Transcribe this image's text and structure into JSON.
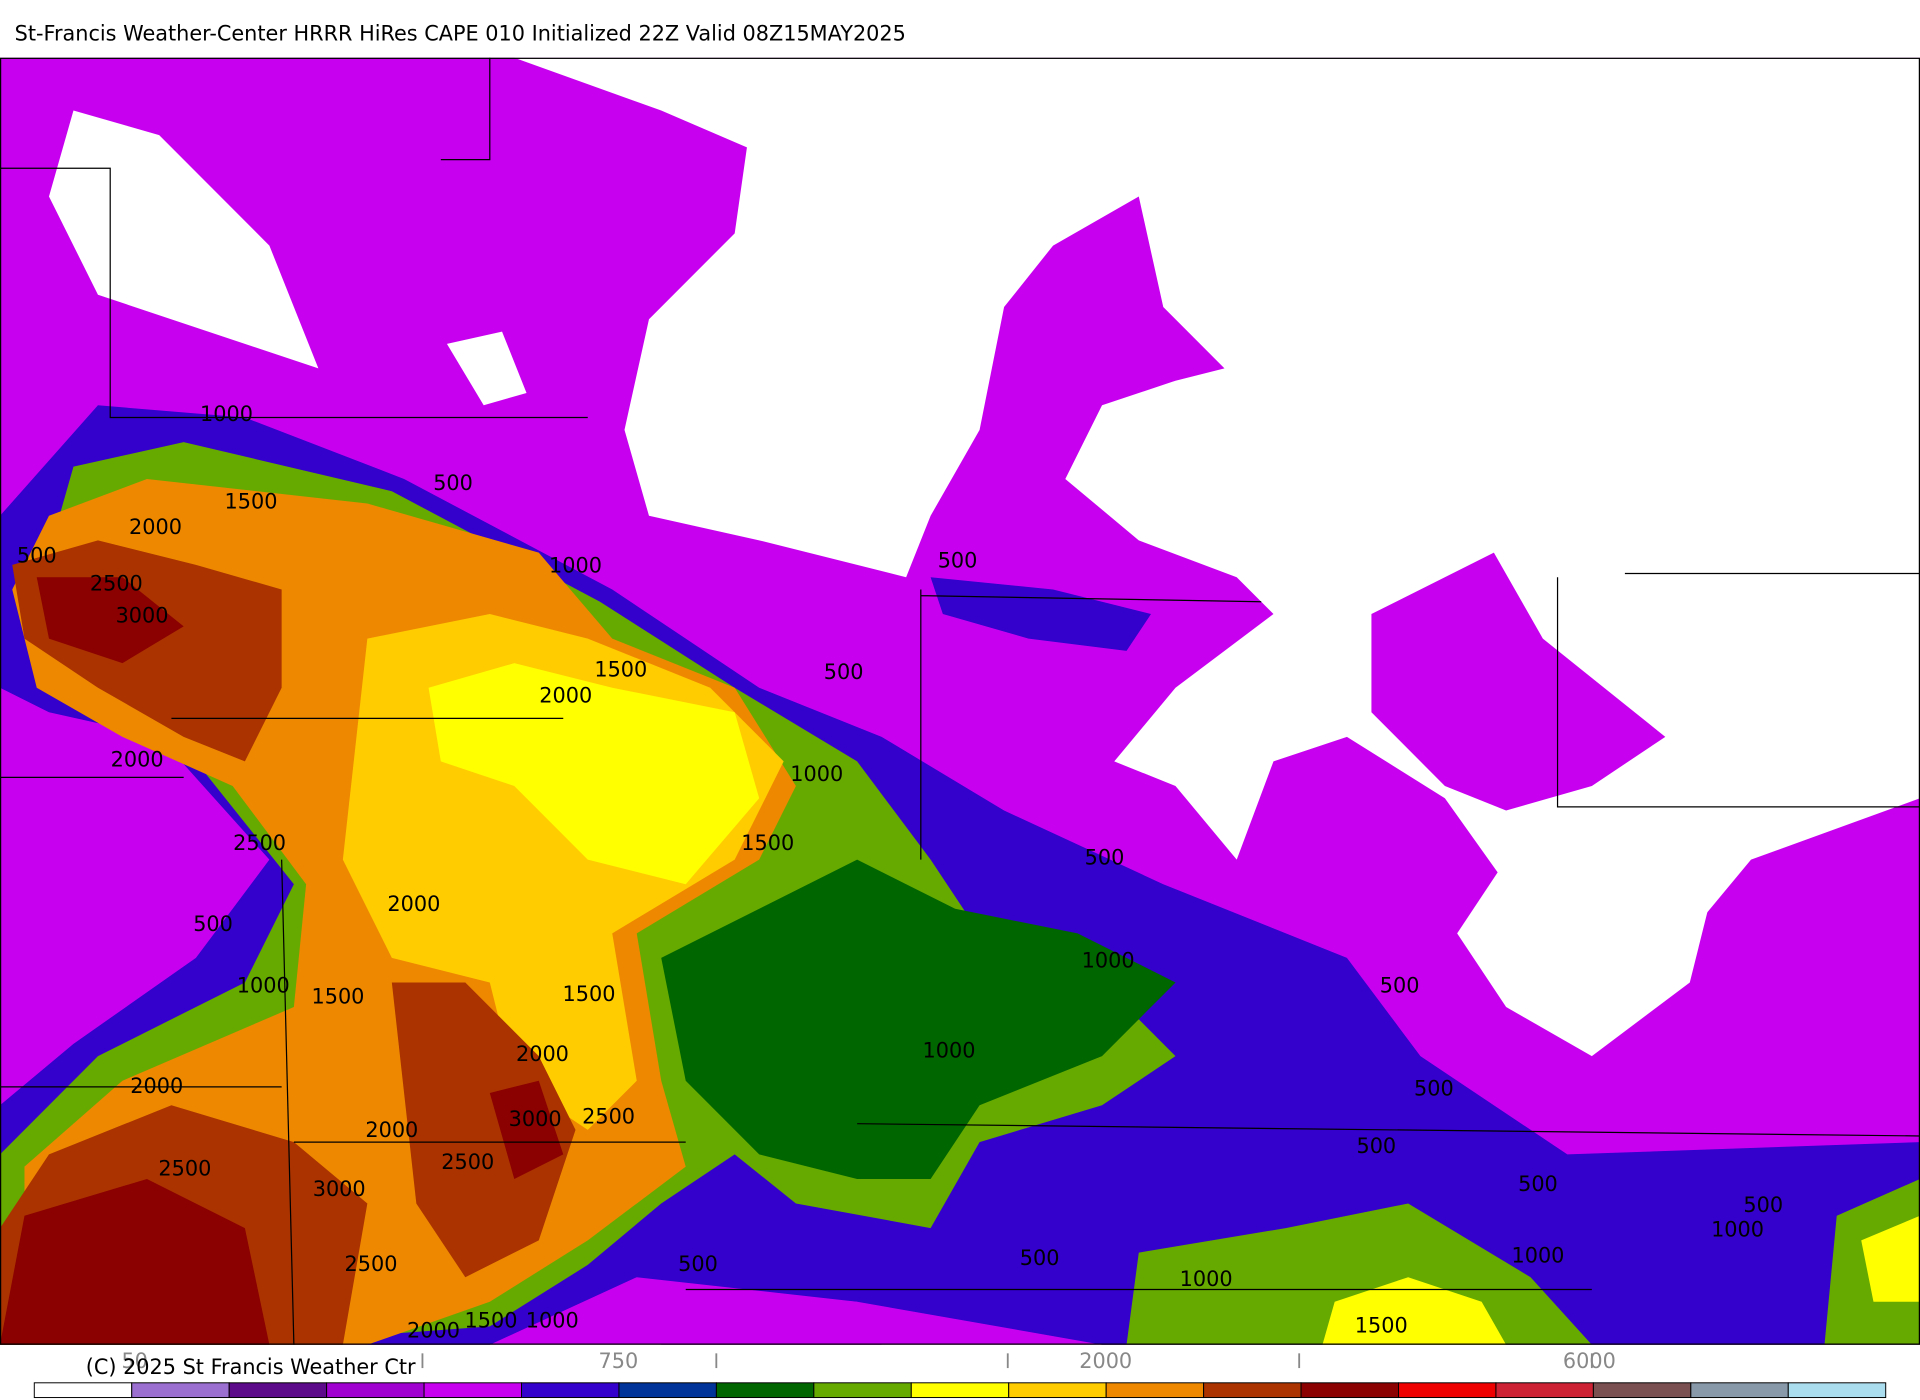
{
  "header": {
    "title": "St-Francis Weather-Center HRRR HiRes CAPE  010 Initialized  22Z Valid 08Z15MAY2025"
  },
  "map": {
    "contour_labels": [
      1000,
      500,
      1500,
      2000,
      500,
      2500,
      3000,
      1000,
      500,
      1500,
      500,
      2000,
      2000,
      1000,
      1500,
      2500,
      500,
      2000,
      500,
      1000,
      1000,
      1500,
      1500,
      500,
      1000,
      2000,
      2000,
      500,
      3000,
      2500,
      2000,
      500,
      2500,
      2500,
      500,
      3000,
      500,
      1000,
      1000,
      500,
      2500,
      500,
      1000,
      1500,
      2000,
      1500,
      1000
    ]
  },
  "colorbar": {
    "colors": [
      "#ffffff",
      "#9a6fd0",
      "#5c0a8a",
      "#a000d0",
      "#c800f0",
      "#3300cc",
      "#003399",
      "#006600",
      "#66aa00",
      "#ffff00",
      "#ffcc00",
      "#ee8800",
      "#aa3300",
      "#8b0000",
      "#ee0000",
      "#cc2233",
      "#7a5050",
      "#8899aa",
      "#aaddee"
    ],
    "labels": [
      50,
      750,
      2000,
      6000
    ]
  },
  "footer": {
    "copyright": "(C) 2025 St Francis Weather Ctr"
  }
}
